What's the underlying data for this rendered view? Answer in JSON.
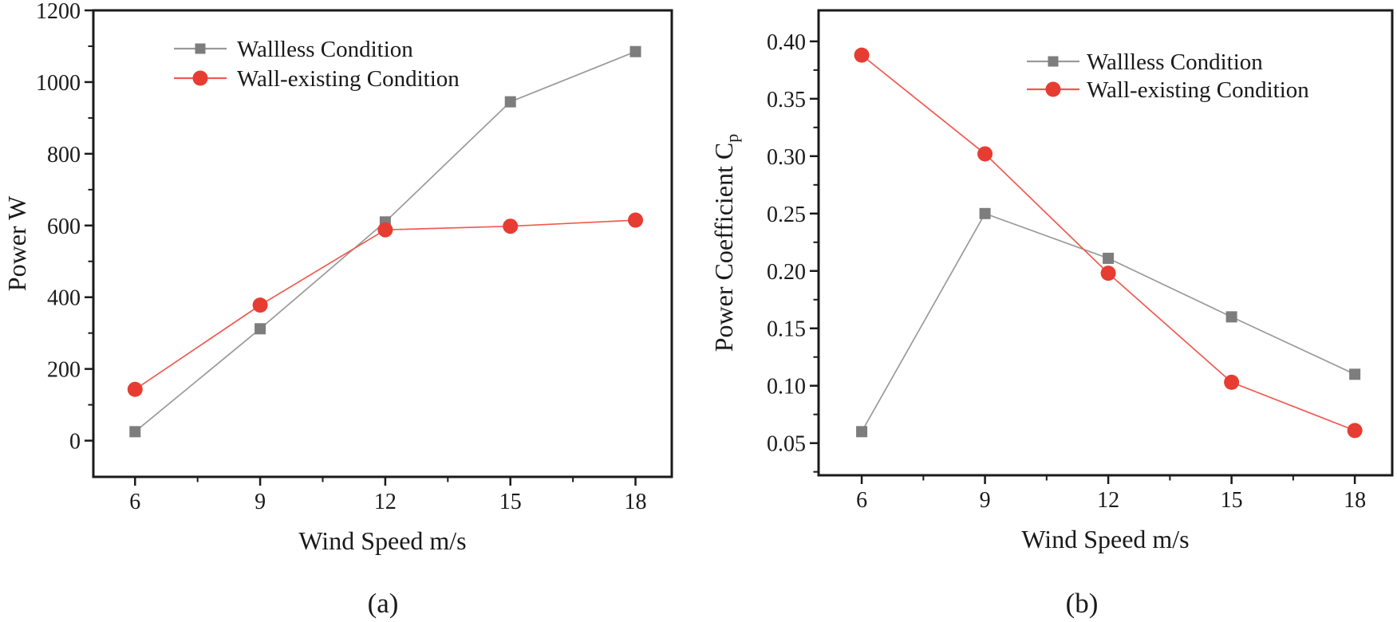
{
  "figure": {
    "panel_a_caption": "(a)",
    "panel_b_caption": "(b)"
  },
  "chart_data": [
    {
      "type": "line",
      "caption": "(a)",
      "xlabel": "Wind Speed m/s",
      "ylabel": "Power W",
      "ylabel_sub": "",
      "x": [
        6,
        9,
        12,
        15,
        18
      ],
      "series": [
        {
          "name": "Wallless Condition",
          "marker": "square",
          "marker_color": "#7d7d7d",
          "line_color": "#9a9a9a",
          "values": [
            25,
            312,
            610,
            945,
            1085
          ]
        },
        {
          "name": "Wall-existing Condition",
          "marker": "circle",
          "marker_color": "#e73c31",
          "line_color": "#ef5a50",
          "values": [
            143,
            378,
            588,
            598,
            615
          ]
        }
      ],
      "xlim": [
        5.0,
        18.87
      ],
      "ylim": [
        -101,
        1200
      ],
      "x_ticks": [
        6,
        9,
        12,
        15,
        18
      ],
      "x_tick_labels": [
        "6",
        "9",
        "12",
        "15",
        "18"
      ],
      "x_minor_ticks": [
        7.5,
        10.5,
        13.5,
        16.5
      ],
      "y_ticks": [
        0,
        200,
        400,
        600,
        800,
        1000,
        1200
      ],
      "y_tick_labels": [
        "0",
        "200",
        "400",
        "600",
        "800",
        "1000",
        "1200"
      ],
      "y_minor_ticks": [
        100,
        300,
        500,
        700,
        900,
        1100
      ],
      "grid": false,
      "legend_position": "top-left-inside"
    },
    {
      "type": "line",
      "caption": "(b)",
      "xlabel": "Wind Speed m/s",
      "ylabel": "Power Coefficient C",
      "ylabel_sub": "p",
      "x": [
        6,
        9,
        12,
        15,
        18
      ],
      "series": [
        {
          "name": "Wallless Condition",
          "marker": "square",
          "marker_color": "#7d7d7d",
          "line_color": "#9a9a9a",
          "values": [
            0.06,
            0.25,
            0.211,
            0.16,
            0.11
          ]
        },
        {
          "name": "Wall-existing Condition",
          "marker": "circle",
          "marker_color": "#e73c31",
          "line_color": "#ef5a50",
          "values": [
            0.388,
            0.302,
            0.198,
            0.103,
            0.061
          ]
        }
      ],
      "xlim": [
        4.95,
        18.91
      ],
      "ylim": [
        0.022,
        0.427
      ],
      "x_ticks": [
        6,
        9,
        12,
        15,
        18
      ],
      "x_tick_labels": [
        "6",
        "9",
        "12",
        "15",
        "18"
      ],
      "x_minor_ticks": [
        7.5,
        10.5,
        13.5,
        16.5
      ],
      "y_ticks": [
        0.05,
        0.1,
        0.15,
        0.2,
        0.25,
        0.3,
        0.35,
        0.4
      ],
      "y_tick_labels": [
        "0.05",
        "0.10",
        "0.15",
        "0.20",
        "0.25",
        "0.30",
        "0.35",
        "0.40"
      ],
      "y_minor_ticks": [
        0.025,
        0.075,
        0.125,
        0.175,
        0.225,
        0.275,
        0.325,
        0.375
      ],
      "grid": false,
      "legend_position": "top-right-inside"
    }
  ]
}
